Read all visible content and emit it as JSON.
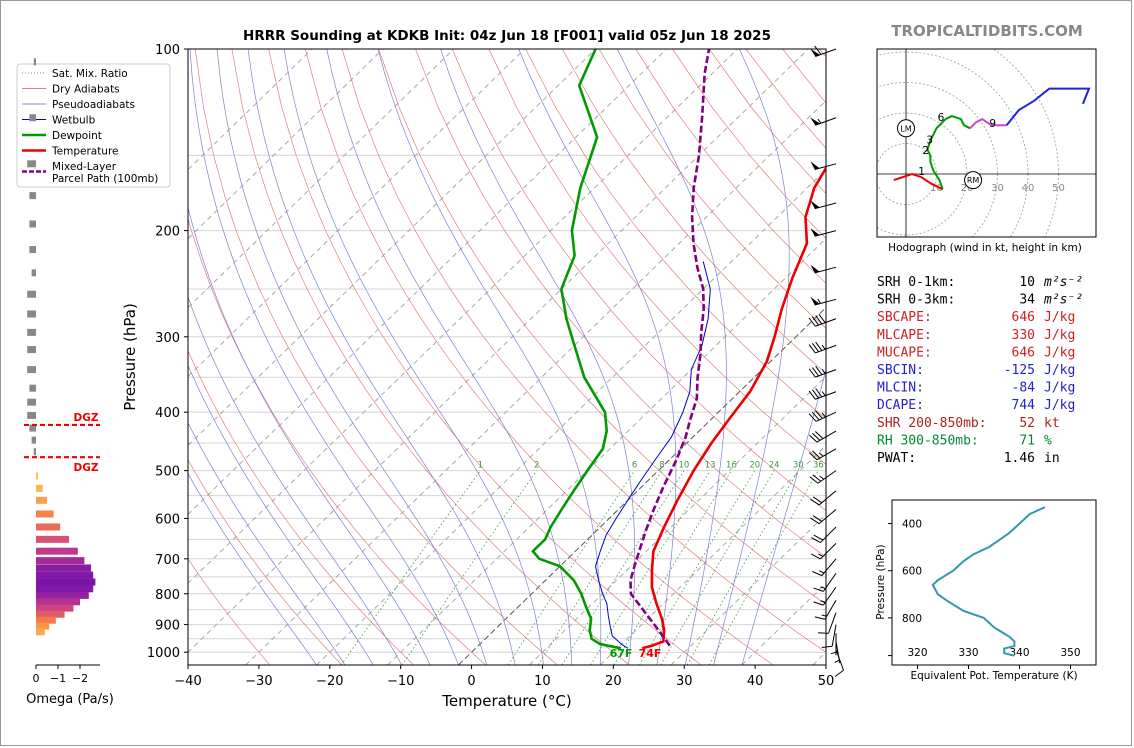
{
  "title": "HRRR Sounding at KDKB Init: 04z Jun 18 [F001] valid 05z Jun 18 2025",
  "watermark": "TROPICALTIDBITS.COM",
  "colors": {
    "temperature": "#ee0000",
    "dewpoint": "#009900",
    "wetbulb": "#0000cc",
    "parcel": "#800080",
    "dry_adiabat": "#e08080",
    "pseudoadiabat": "#8080d0",
    "mixing_ratio": "#3a9a3a",
    "dgz": "#ee0000",
    "hodo_0_1": "#ee0000",
    "hodo_1_3": "#009900",
    "hodo_3_6": "#009900",
    "hodo_6_9": "#cc44cc",
    "hodo_9_12": "#2222dd",
    "theta_e": "#3399aa"
  },
  "chart_data": [
    {
      "id": "skewt",
      "type": "line",
      "title": "HRRR Sounding at KDKB Init: 04z Jun 18 [F001] valid 05z Jun 18 2025",
      "xlabel": "Temperature (°C)",
      "ylabel": "Pressure (hPa)",
      "xlim": [
        -40,
        50
      ],
      "ylim": [
        1050,
        100
      ],
      "y_scale": "log",
      "x_ticks": [
        "−40",
        "−30",
        "−20",
        "−10",
        "0",
        "10",
        "20",
        "30",
        "40",
        "50"
      ],
      "y_ticks": [
        "100",
        "200",
        "300",
        "400",
        "500",
        "600",
        "700",
        "800",
        "900",
        "1000"
      ],
      "legend": {
        "placement": "top-left",
        "entries": [
          "Sat. Mix. Ratio",
          "Dry Adiabats",
          "Pseudoadiabats",
          "Wetbulb",
          "Dewpoint",
          "Temperature",
          "Mixed-Layer\nParcel Path (100mb)"
        ]
      },
      "mixing_ratio_labels": [
        "1",
        "2",
        "6",
        "8",
        "10",
        "13",
        "16",
        "20",
        "24",
        "30",
        "36"
      ],
      "surface_labels": {
        "dewpoint": "67F",
        "temperature": "74F"
      },
      "series": [
        {
          "name": "Temperature",
          "points": [
            [
              23.5,
              985
            ],
            [
              24.5,
              975
            ],
            [
              25.5,
              960
            ],
            [
              24,
              920
            ],
            [
              22,
              880
            ],
            [
              19,
              830
            ],
            [
              16,
              780
            ],
            [
              13.5,
              730
            ],
            [
              11,
              680
            ],
            [
              9,
              620
            ],
            [
              7,
              560
            ],
            [
              5,
              500
            ],
            [
              3.5,
              450
            ],
            [
              2.5,
              410
            ],
            [
              1.5,
              370
            ],
            [
              -0.5,
              330
            ],
            [
              -3,
              300
            ],
            [
              -6,
              270
            ],
            [
              -9,
              240
            ],
            [
              -12,
              210
            ],
            [
              -16,
              190
            ],
            [
              -19,
              170
            ],
            [
              -21,
              150
            ],
            [
              -25,
              130
            ],
            [
              -30,
              115
            ],
            [
              -35,
              100
            ]
          ]
        },
        {
          "name": "Dewpoint",
          "points": [
            [
              20.5,
              985
            ],
            [
              17,
              970
            ],
            [
              15,
              950
            ],
            [
              13.5,
              920
            ],
            [
              12,
              880
            ],
            [
              9.5,
              840
            ],
            [
              7,
              800
            ],
            [
              4,
              760
            ],
            [
              0,
              720
            ],
            [
              -4,
              700
            ],
            [
              -6,
              680
            ],
            [
              -6,
              650
            ],
            [
              -7,
              620
            ],
            [
              -8,
              580
            ],
            [
              -9,
              540
            ],
            [
              -10,
              500
            ],
            [
              -11,
              460
            ],
            [
              -13,
              430
            ],
            [
              -16,
              400
            ],
            [
              -24,
              350
            ],
            [
              -30,
              310
            ],
            [
              -35,
              280
            ],
            [
              -40,
              250
            ],
            [
              -43,
              220
            ],
            [
              -47,
              200
            ],
            [
              -52,
              170
            ],
            [
              -57,
              140
            ],
            [
              -67,
              115
            ],
            [
              -70,
              100
            ]
          ]
        },
        {
          "name": "Wetbulb",
          "points": [
            [
              21.5,
              985
            ],
            [
              20,
              970
            ],
            [
              17.5,
              940
            ],
            [
              16,
              910
            ],
            [
              14,
              870
            ],
            [
              12,
              830
            ],
            [
              10,
              800
            ],
            [
              7.5,
              760
            ],
            [
              5,
              720
            ],
            [
              3.5,
              680
            ],
            [
              2,
              640
            ],
            [
              1,
              600
            ],
            [
              0,
              560
            ],
            [
              -1,
              520
            ],
            [
              -2,
              480
            ],
            [
              -3,
              440
            ],
            [
              -5,
              400
            ],
            [
              -7,
              370
            ],
            [
              -10,
              340
            ],
            [
              -12,
              310
            ],
            [
              -15,
              280
            ],
            [
              -19,
              250
            ],
            [
              -24,
              225
            ]
          ]
        },
        {
          "name": "Mixed-Layer\nParcel Path (100mb)",
          "points": [
            [
              27,
              975
            ],
            [
              22.5,
              910
            ],
            [
              18,
              850
            ],
            [
              14,
              800
            ],
            [
              12,
              760
            ],
            [
              10.5,
              720
            ],
            [
              9,
              680
            ],
            [
              7,
              630
            ],
            [
              5,
              580
            ],
            [
              3,
              530
            ],
            [
              1,
              480
            ],
            [
              -1,
              440
            ],
            [
              -3,
              410
            ],
            [
              -5,
              380
            ],
            [
              -8,
              350
            ],
            [
              -11,
              320
            ],
            [
              -14,
              295
            ],
            [
              -17,
              270
            ],
            [
              -20,
              250
            ],
            [
              -24,
              230
            ],
            [
              -28,
              210
            ],
            [
              -32,
              190
            ],
            [
              -36,
              170
            ],
            [
              -40,
              150
            ],
            [
              -45,
              130
            ],
            [
              -51,
              110
            ],
            [
              -54,
              100
            ]
          ]
        }
      ]
    },
    {
      "id": "hodograph",
      "type": "line",
      "title": "Hodograph (wind in kt, height in km)",
      "ring_labels": [
        "10",
        "20",
        "30",
        "40",
        "50"
      ],
      "height_labels": [
        "1",
        "2",
        "3",
        "6",
        "9"
      ],
      "markers": [
        "LM",
        "RM"
      ],
      "series": [
        {
          "name": "0-1km",
          "points": [
            [
              -4,
              -2
            ],
            [
              2,
              0
            ],
            [
              5,
              -1
            ],
            [
              8,
              -3
            ],
            [
              10,
              -4
            ],
            [
              12,
              -5
            ]
          ]
        },
        {
          "name": "1-3km",
          "points": [
            [
              12,
              -5
            ],
            [
              11,
              -2
            ],
            [
              9,
              1
            ],
            [
              8,
              4
            ],
            [
              8,
              6
            ],
            [
              7,
              8
            ]
          ]
        },
        {
          "name": "3-6km",
          "points": [
            [
              7,
              8
            ],
            [
              8,
              11
            ],
            [
              10,
              15
            ],
            [
              13,
              18
            ],
            [
              15,
              19
            ],
            [
              18,
              18
            ],
            [
              19,
              16
            ],
            [
              21,
              15
            ]
          ]
        },
        {
          "name": "6-9km",
          "points": [
            [
              21,
              15
            ],
            [
              23,
              17
            ],
            [
              25,
              18
            ],
            [
              28,
              16
            ],
            [
              30,
              16
            ],
            [
              33,
              16
            ]
          ]
        },
        {
          "name": "9-12km",
          "points": [
            [
              33,
              16
            ],
            [
              37,
              21
            ],
            [
              42,
              24
            ],
            [
              47,
              28
            ],
            [
              55,
              28
            ],
            [
              60,
              28
            ],
            [
              58,
              23
            ]
          ]
        }
      ],
      "storm_motion": {
        "LM": [
          0,
          15
        ],
        "RM": [
          22,
          -2
        ]
      }
    },
    {
      "id": "theta_e",
      "type": "line",
      "xlabel": "Equivalent Pot. Temperature (K)",
      "ylabel": "Pressure (hPa)",
      "xlim": [
        315,
        355
      ],
      "ylim": [
        1000,
        300
      ],
      "x_ticks": [
        "320",
        "330",
        "340",
        "350"
      ],
      "y_ticks": [
        "400",
        "600",
        "800"
      ],
      "series": [
        {
          "name": "theta-e",
          "points": [
            [
              339,
              960
            ],
            [
              337,
              950
            ],
            [
              337,
              930
            ],
            [
              339,
              920
            ],
            [
              339,
              900
            ],
            [
              338,
              880
            ],
            [
              335,
              840
            ],
            [
              333,
              800
            ],
            [
              329,
              770
            ],
            [
              326,
              730
            ],
            [
              324,
              700
            ],
            [
              323,
              660
            ],
            [
              324,
              640
            ],
            [
              327,
              600
            ],
            [
              329,
              560
            ],
            [
              331,
              530
            ],
            [
              334,
              500
            ],
            [
              336,
              470
            ],
            [
              338,
              440
            ],
            [
              340,
              400
            ],
            [
              342,
              360
            ],
            [
              345,
              330
            ]
          ]
        }
      ]
    },
    {
      "id": "omega",
      "type": "bar",
      "xlabel": "Omega (Pa/s)",
      "x_ticks": [
        "0",
        "−1",
        "−2"
      ],
      "dgz_label": "DGZ",
      "dgz_pressures": [
        420,
        475
      ],
      "bars": [
        {
          "p": 105,
          "v": 0.1
        },
        {
          "p": 130,
          "v": 0.3
        },
        {
          "p": 155,
          "v": 0.4
        },
        {
          "p": 175,
          "v": 0.3
        },
        {
          "p": 195,
          "v": 0.3
        },
        {
          "p": 215,
          "v": 0.3
        },
        {
          "p": 235,
          "v": 0.2
        },
        {
          "p": 255,
          "v": 0.4
        },
        {
          "p": 275,
          "v": 0.4
        },
        {
          "p": 295,
          "v": 0.4
        },
        {
          "p": 315,
          "v": 0.4
        },
        {
          "p": 340,
          "v": 0.4
        },
        {
          "p": 365,
          "v": 0.3
        },
        {
          "p": 385,
          "v": 0.4
        },
        {
          "p": 405,
          "v": 0.4
        },
        {
          "p": 425,
          "v": 0.3
        },
        {
          "p": 445,
          "v": 0.2
        },
        {
          "p": 465,
          "v": 0.1
        },
        {
          "p": 510,
          "v": -0.1
        },
        {
          "p": 535,
          "v": -0.3
        },
        {
          "p": 560,
          "v": -0.5
        },
        {
          "p": 590,
          "v": -0.8
        },
        {
          "p": 620,
          "v": -1.1
        },
        {
          "p": 650,
          "v": -1.5
        },
        {
          "p": 680,
          "v": -1.9
        },
        {
          "p": 705,
          "v": -2.2
        },
        {
          "p": 725,
          "v": -2.5
        },
        {
          "p": 745,
          "v": -2.6
        },
        {
          "p": 765,
          "v": -2.7
        },
        {
          "p": 785,
          "v": -2.6
        },
        {
          "p": 805,
          "v": -2.4
        },
        {
          "p": 825,
          "v": -2.0
        },
        {
          "p": 845,
          "v": -1.7
        },
        {
          "p": 865,
          "v": -1.3
        },
        {
          "p": 885,
          "v": -0.9
        },
        {
          "p": 905,
          "v": -0.6
        },
        {
          "p": 925,
          "v": -0.4
        }
      ]
    }
  ],
  "indices": [
    {
      "label": "SRH 0-1km:",
      "value": "10",
      "unit": "m²s⁻²",
      "color": "#000000"
    },
    {
      "label": "SRH 0-3km:",
      "value": "34",
      "unit": "m²s⁻²",
      "color": "#000000"
    },
    {
      "label": "SBCAPE:",
      "value": "646",
      "unit": "J/kg",
      "color": "#cc2222"
    },
    {
      "label": "MLCAPE:",
      "value": "330",
      "unit": "J/kg",
      "color": "#cc2222"
    },
    {
      "label": "MUCAPE:",
      "value": "646",
      "unit": "J/kg",
      "color": "#cc2222"
    },
    {
      "label": "SBCIN:",
      "value": "-125",
      "unit": "J/kg",
      "color": "#2222cc"
    },
    {
      "label": "MLCIN:",
      "value": "-84",
      "unit": "J/kg",
      "color": "#2222cc"
    },
    {
      "label": "DCAPE:",
      "value": "744",
      "unit": "J/kg",
      "color": "#2222cc"
    },
    {
      "label": "SHR 200-850mb:",
      "value": "52",
      "unit": "kt",
      "color": "#aa2222"
    },
    {
      "label": "RH 300-850mb:",
      "value": "71",
      "unit": "%",
      "color": "#008833"
    },
    {
      "label": "PWAT:",
      "value": "1.46",
      "unit": "in",
      "color": "#000000"
    }
  ],
  "wind_barbs": [
    {
      "p": 100,
      "dir": 250,
      "spd": 60
    },
    {
      "p": 130,
      "dir": 250,
      "spd": 55
    },
    {
      "p": 155,
      "dir": 255,
      "spd": 50
    },
    {
      "p": 180,
      "dir": 255,
      "spd": 50
    },
    {
      "p": 200,
      "dir": 255,
      "spd": 50
    },
    {
      "p": 230,
      "dir": 255,
      "spd": 50
    },
    {
      "p": 260,
      "dir": 255,
      "spd": 55
    },
    {
      "p": 280,
      "dir": 250,
      "spd": 40
    },
    {
      "p": 310,
      "dir": 250,
      "spd": 35
    },
    {
      "p": 340,
      "dir": 250,
      "spd": 35
    },
    {
      "p": 370,
      "dir": 250,
      "spd": 35
    },
    {
      "p": 400,
      "dir": 245,
      "spd": 35
    },
    {
      "p": 430,
      "dir": 240,
      "spd": 30
    },
    {
      "p": 460,
      "dir": 240,
      "spd": 25
    },
    {
      "p": 500,
      "dir": 235,
      "spd": 25
    },
    {
      "p": 540,
      "dir": 230,
      "spd": 20
    },
    {
      "p": 580,
      "dir": 230,
      "spd": 20
    },
    {
      "p": 620,
      "dir": 225,
      "spd": 20
    },
    {
      "p": 660,
      "dir": 225,
      "spd": 15
    },
    {
      "p": 700,
      "dir": 220,
      "spd": 15
    },
    {
      "p": 740,
      "dir": 215,
      "spd": 15
    },
    {
      "p": 780,
      "dir": 215,
      "spd": 15
    },
    {
      "p": 820,
      "dir": 210,
      "spd": 15
    },
    {
      "p": 860,
      "dir": 200,
      "spd": 10
    },
    {
      "p": 900,
      "dir": 190,
      "spd": 10
    },
    {
      "p": 930,
      "dir": 180,
      "spd": 5
    },
    {
      "p": 960,
      "dir": 170,
      "spd": 5
    },
    {
      "p": 990,
      "dir": 160,
      "spd": 10
    }
  ]
}
